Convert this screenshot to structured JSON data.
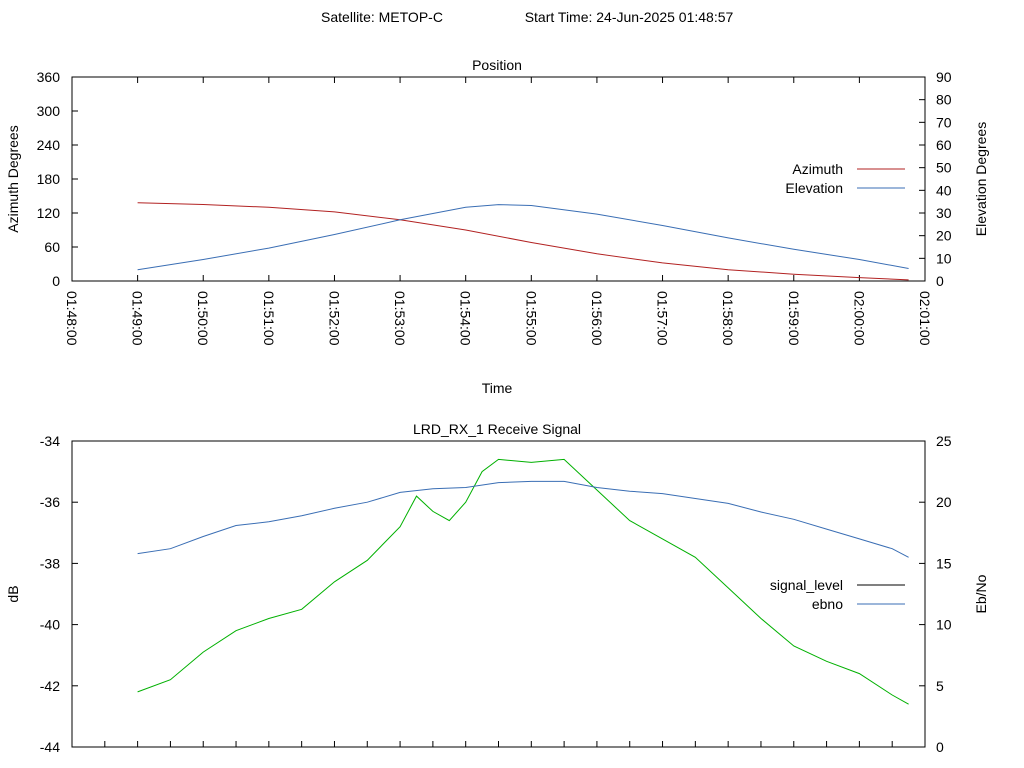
{
  "header": {
    "satellite_label": "Satellite: METOP-C",
    "start_time_label": "Start Time: 24-Jun-2025 01:48:57"
  },
  "colors": {
    "azimuth": "#b22222",
    "elevation": "#3a6eb4",
    "signal_level": "#00b000",
    "signal_level_legend": "#000000",
    "ebno": "#3a6eb4"
  },
  "chart_data": [
    {
      "type": "line",
      "title": "Position",
      "xlabel": "Time",
      "ylabel": "Azimuth Degrees",
      "y2label": "Elevation Degrees",
      "xlim": [
        "01:48:00",
        "02:01:00"
      ],
      "ylim": [
        0,
        360
      ],
      "y2lim": [
        0,
        90
      ],
      "x_ticks": [
        "01:48:00",
        "01:49:00",
        "01:50:00",
        "01:51:00",
        "01:52:00",
        "01:53:00",
        "01:54:00",
        "01:55:00",
        "01:56:00",
        "01:57:00",
        "01:58:00",
        "01:59:00",
        "02:00:00",
        "02:01:00"
      ],
      "y_ticks": [
        "0",
        "60",
        "120",
        "180",
        "240",
        "300",
        "360"
      ],
      "y2_ticks": [
        "0",
        "10",
        "20",
        "30",
        "40",
        "50",
        "60",
        "70",
        "80",
        "90"
      ],
      "legend_position": "right",
      "series": [
        {
          "name": "Azimuth",
          "axis": "y",
          "x": [
            "01:49:00",
            "01:50:00",
            "01:51:00",
            "01:52:00",
            "01:53:00",
            "01:54:00",
            "01:55:00",
            "01:56:00",
            "01:57:00",
            "01:58:00",
            "01:59:00",
            "02:00:00",
            "02:00:45"
          ],
          "values": [
            138,
            135,
            130,
            122,
            108,
            90,
            68,
            48,
            32,
            20,
            12,
            6,
            2
          ]
        },
        {
          "name": "Elevation",
          "axis": "y2",
          "x": [
            "01:49:00",
            "01:50:00",
            "01:51:00",
            "01:52:00",
            "01:53:00",
            "01:54:00",
            "01:54:30",
            "01:55:00",
            "01:56:00",
            "01:57:00",
            "01:58:00",
            "01:59:00",
            "02:00:00",
            "02:00:45"
          ],
          "values": [
            5,
            9.5,
            14.5,
            20.5,
            27,
            32.5,
            33.7,
            33.3,
            29.5,
            24.5,
            19,
            14,
            9.5,
            5.5
          ]
        }
      ]
    },
    {
      "type": "line",
      "title": "LRD_RX_1 Receive Signal",
      "xlabel": "",
      "ylabel": "dB",
      "y2label": "Eb/No",
      "xlim": [
        "01:48:00",
        "02:01:00"
      ],
      "ylim": [
        -44,
        -34
      ],
      "y2lim": [
        0,
        25
      ],
      "y_ticks": [
        "-44",
        "-42",
        "-40",
        "-38",
        "-36",
        "-34"
      ],
      "y2_ticks": [
        "0",
        "5",
        "10",
        "15",
        "20",
        "25"
      ],
      "legend_position": "right",
      "series": [
        {
          "name": "signal_level",
          "axis": "y",
          "x": [
            "01:49:00",
            "01:49:30",
            "01:50:00",
            "01:50:30",
            "01:51:00",
            "01:51:30",
            "01:52:00",
            "01:52:30",
            "01:53:00",
            "01:53:15",
            "01:53:30",
            "01:53:45",
            "01:54:00",
            "01:54:15",
            "01:54:30",
            "01:55:00",
            "01:55:30",
            "01:56:00",
            "01:56:30",
            "01:57:00",
            "01:57:30",
            "01:58:00",
            "01:58:30",
            "01:59:00",
            "01:59:30",
            "02:00:00",
            "02:00:30",
            "02:00:45"
          ],
          "values": [
            -42.2,
            -41.8,
            -40.9,
            -40.2,
            -39.8,
            -39.5,
            -38.6,
            -37.9,
            -36.8,
            -35.8,
            -36.3,
            -36.6,
            -36.0,
            -35.0,
            -34.6,
            -34.7,
            -34.6,
            -35.6,
            -36.6,
            -37.2,
            -37.8,
            -38.8,
            -39.8,
            -40.7,
            -41.2,
            -41.6,
            -42.3,
            -42.6
          ]
        },
        {
          "name": "ebno",
          "axis": "y2",
          "x": [
            "01:49:00",
            "01:49:30",
            "01:50:00",
            "01:50:30",
            "01:51:00",
            "01:51:30",
            "01:52:00",
            "01:52:30",
            "01:53:00",
            "01:53:30",
            "01:54:00",
            "01:54:30",
            "01:55:00",
            "01:55:30",
            "01:56:00",
            "01:56:30",
            "01:57:00",
            "01:57:30",
            "01:58:00",
            "01:58:30",
            "01:59:00",
            "01:59:30",
            "02:00:00",
            "02:00:30",
            "02:00:45"
          ],
          "values": [
            15.8,
            16.2,
            17.2,
            18.1,
            18.4,
            18.9,
            19.5,
            20.0,
            20.8,
            21.1,
            21.2,
            21.6,
            21.7,
            21.7,
            21.2,
            20.9,
            20.7,
            20.3,
            19.9,
            19.2,
            18.6,
            17.8,
            17.0,
            16.2,
            15.5
          ]
        }
      ]
    }
  ]
}
